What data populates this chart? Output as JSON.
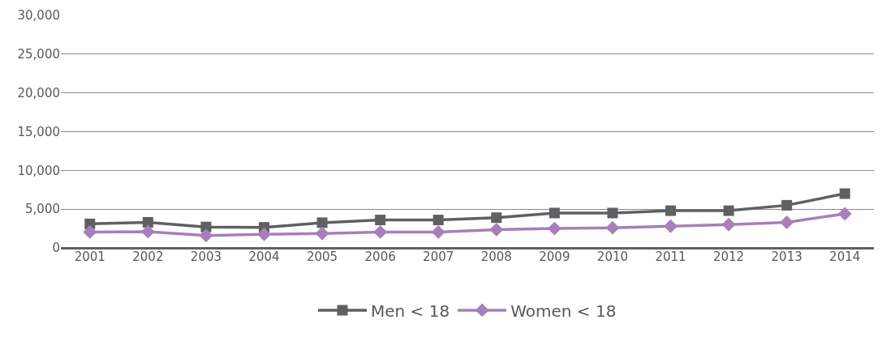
{
  "chart_data": {
    "type": "line",
    "categories": [
      "2001",
      "2002",
      "2003",
      "2004",
      "2005",
      "2006",
      "2007",
      "2008",
      "2009",
      "2010",
      "2011",
      "2012",
      "2013",
      "2014"
    ],
    "series": [
      {
        "name": "Men < 18",
        "color": "#5f6062",
        "marker": "square",
        "values": [
          3100,
          3300,
          2700,
          2650,
          3250,
          3600,
          3600,
          3900,
          4500,
          4500,
          4800,
          4800,
          5500,
          7000
        ]
      },
      {
        "name": "Women < 18",
        "color": "#a67fbb",
        "marker": "diamond",
        "values": [
          2050,
          2100,
          1600,
          1750,
          1850,
          2050,
          2050,
          2350,
          2500,
          2600,
          2800,
          3000,
          3300,
          4400
        ]
      }
    ],
    "ylim": [
      0,
      30000
    ],
    "yticks": [
      {
        "value": 0,
        "label": "0"
      },
      {
        "value": 5000,
        "label": "5,000"
      },
      {
        "value": 10000,
        "label": "10,000"
      },
      {
        "value": 15000,
        "label": "15,000"
      },
      {
        "value": 20000,
        "label": "20,000"
      },
      {
        "value": 25000,
        "label": "25,000"
      },
      {
        "value": 30000,
        "label": "30,000"
      }
    ],
    "grid": "y",
    "legend": "bottom"
  }
}
